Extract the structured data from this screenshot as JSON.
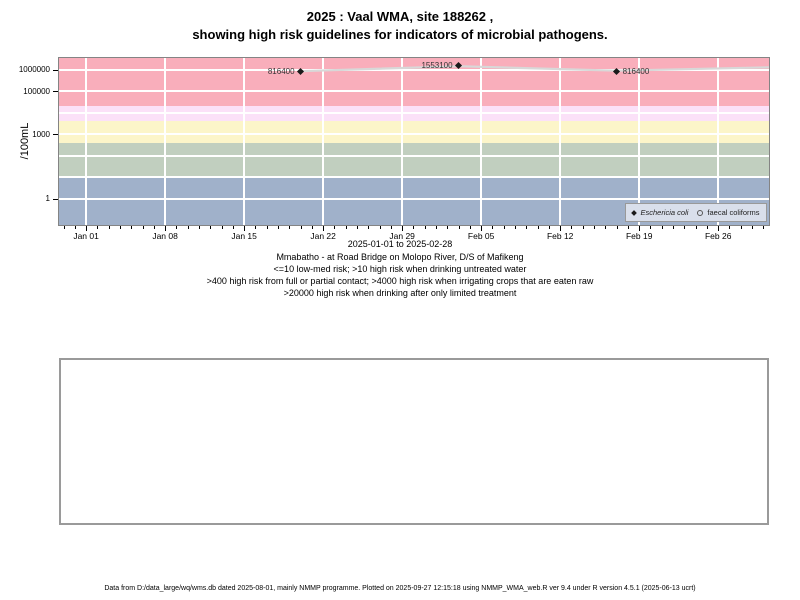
{
  "title": {
    "line1": "2025 : Vaal WMA, site 188262 ,",
    "line2": "showing high risk guidelines for indicators of microbial pathogens."
  },
  "y_axis_label": "/100mL",
  "captions": [
    "2025-01-01 to 2025-02-28",
    "Mmabatho - at Road Bridge on Molopo River, D/S of Mafikeng",
    "<=10 low-med risk; >10 high risk when drinking untreated water",
    ">400 high risk from full or partial contact; >4000 high risk when irrigating crops that are eaten raw",
    ">20000 high risk when drinking after only limited treatment"
  ],
  "footer": "Data from D:/data_large/wq/wms.db dated 2025-08-01, mainly NMMP programme. Plotted on 2025-09-27 12:15:18 using NMMP_WMA_web.R ver 9.4 under R version 4.5.1 (2025-06-13 ucrt)",
  "colors": {
    "plot_border": "#848484",
    "gridline": "#ffffff",
    "legend_bg": "#d9dfeb",
    "legend_border": "#999999",
    "point": "#1a1a1a",
    "faecal_line": "#d8d8d8",
    "band_blue": "#a0b1ca",
    "band_green": "#c1cfbf",
    "band_yellow": "#fcf5c9",
    "band_lavender": "#fbe1f8",
    "band_pink": "#f9aebb"
  },
  "chart_data": {
    "type": "line",
    "y_scale": "log10",
    "ylabel": "/100mL",
    "ylim": [
      0.06,
      3500000
    ],
    "x_range_days": [
      -2.4,
      60.5
    ],
    "x_epoch": "2025-01-01",
    "grid": true,
    "gridline_decades": [
      0,
      1,
      2,
      3,
      4,
      5,
      6
    ],
    "x_ticks": [
      {
        "label": "Jan 01",
        "day": 0
      },
      {
        "label": "Jan 08",
        "day": 7
      },
      {
        "label": "Jan 15",
        "day": 14
      },
      {
        "label": "Jan 22",
        "day": 21
      },
      {
        "label": "Jan 29",
        "day": 28
      },
      {
        "label": "Feb 05",
        "day": 35
      },
      {
        "label": "Feb 12",
        "day": 42
      },
      {
        "label": "Feb 19",
        "day": 49
      },
      {
        "label": "Feb 26",
        "day": 56
      }
    ],
    "y_ticks": [
      {
        "label": "1",
        "value": 1
      },
      {
        "label": "1000",
        "value": 1000
      },
      {
        "label": "100000",
        "value": 100000
      },
      {
        "label": "1000000",
        "value": 1000000
      }
    ],
    "risk_bands": [
      {
        "name": "low-med risk <=10",
        "from": 0.06,
        "to": 10,
        "color": "#a0b1ca"
      },
      {
        "name": ">10 high risk drinking untreated water",
        "from": 10,
        "to": 400,
        "color": "#c1cfbf"
      },
      {
        "name": ">400 high risk full or partial contact",
        "from": 400,
        "to": 4000,
        "color": "#fcf5c9"
      },
      {
        "name": ">4000 high risk irrigating crops eaten raw",
        "from": 4000,
        "to": 20000,
        "color": "#fbe1f8"
      },
      {
        "name": ">20000 high risk drinking after limited treatment",
        "from": 20000,
        "to": 3500000,
        "color": "#f9aebb"
      }
    ],
    "series": [
      {
        "name": "Eschericia coli",
        "marker": "filled-diamond",
        "color": "#1a1a1a",
        "line": false,
        "points": [
          {
            "date": "2025-01-20",
            "day": 19,
            "value": 816400,
            "label": "816400",
            "label_side": "left"
          },
          {
            "date": "2025-02-03",
            "day": 33,
            "value": 1553100,
            "label": "1553100",
            "label_side": "left"
          },
          {
            "date": "2025-02-17",
            "day": 47,
            "value": 816400,
            "label": "816400",
            "label_side": "right"
          }
        ]
      },
      {
        "name": "faecal coliforms",
        "marker": "open-circle",
        "color": "#d8d8d8",
        "line": true,
        "points": [
          {
            "day": 19,
            "value": 850000
          },
          {
            "day": 33,
            "value": 1450000
          },
          {
            "day": 47,
            "value": 900000
          },
          {
            "day": 61,
            "value": 1300000
          }
        ]
      }
    ],
    "legend": {
      "position": "bottom-right",
      "items": [
        {
          "marker": "filled-diamond",
          "label": "Eschericia coli",
          "italic": true
        },
        {
          "marker": "open-circle",
          "label": "faecal coliforms",
          "italic": false
        }
      ]
    }
  }
}
